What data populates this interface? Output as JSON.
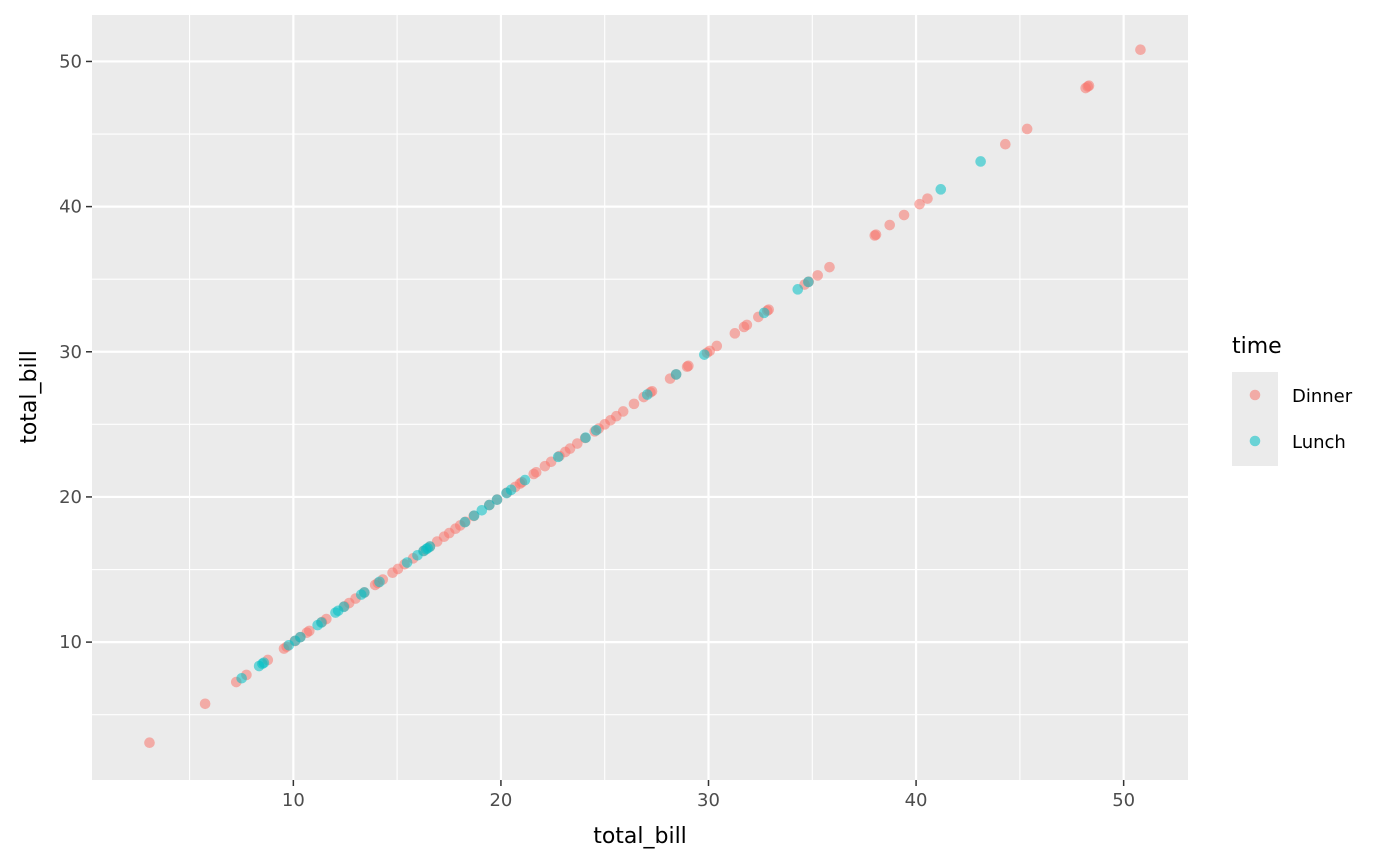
{
  "chart_data": {
    "type": "scatter",
    "xlabel": "total_bill",
    "ylabel": "total_bill",
    "xlim": [
      0.3,
      53.1
    ],
    "ylim": [
      0.5,
      53.2
    ],
    "x_ticks": [
      10,
      20,
      30,
      40,
      50
    ],
    "y_ticks": [
      10,
      20,
      30,
      40,
      50
    ],
    "grid": true,
    "legend": {
      "title": "time",
      "position": "right",
      "entries": [
        "Dinner",
        "Lunch"
      ]
    },
    "colors": {
      "Dinner": "#F8766D",
      "Lunch": "#00BFC4",
      "panel": "#EBEBEB"
    },
    "series": [
      {
        "name": "Dinner",
        "x": [
          3.07,
          5.75,
          7.25,
          7.74,
          8.77,
          9.55,
          9.68,
          10.07,
          10.33,
          10.65,
          10.77,
          11.38,
          11.59,
          12.46,
          12.69,
          13.0,
          13.42,
          13.94,
          14.07,
          14.31,
          14.78,
          15.04,
          15.36,
          15.77,
          16.29,
          16.58,
          16.93,
          17.26,
          17.51,
          17.81,
          18.04,
          18.29,
          18.69,
          19.44,
          19.82,
          20.29,
          20.69,
          20.92,
          21.01,
          21.58,
          21.7,
          22.12,
          22.42,
          22.82,
          23.1,
          23.33,
          23.68,
          24.06,
          24.52,
          24.71,
          25.0,
          25.28,
          25.56,
          25.89,
          26.41,
          26.88,
          27.2,
          27.28,
          28.15,
          28.44,
          28.97,
          29.03,
          29.93,
          30.06,
          30.4,
          31.27,
          31.71,
          31.85,
          32.4,
          32.83,
          32.9,
          34.63,
          34.83,
          35.26,
          35.83,
          38.01,
          38.07,
          38.73,
          39.42,
          40.17,
          40.55,
          44.3,
          45.35,
          48.17,
          48.27,
          48.33,
          50.81
        ],
        "y": [
          3.07,
          5.75,
          7.25,
          7.74,
          8.77,
          9.55,
          9.68,
          10.07,
          10.33,
          10.65,
          10.77,
          11.38,
          11.59,
          12.46,
          12.69,
          13.0,
          13.42,
          13.94,
          14.07,
          14.31,
          14.78,
          15.04,
          15.36,
          15.77,
          16.29,
          16.58,
          16.93,
          17.26,
          17.51,
          17.81,
          18.04,
          18.29,
          18.69,
          19.44,
          19.82,
          20.29,
          20.69,
          20.92,
          21.01,
          21.58,
          21.7,
          22.12,
          22.42,
          22.82,
          23.1,
          23.33,
          23.68,
          24.06,
          24.52,
          24.71,
          25.0,
          25.28,
          25.56,
          25.89,
          26.41,
          26.88,
          27.2,
          27.28,
          28.15,
          28.44,
          28.97,
          29.03,
          29.93,
          30.06,
          30.4,
          31.27,
          31.71,
          31.85,
          32.4,
          32.83,
          32.9,
          34.63,
          34.83,
          35.26,
          35.83,
          38.01,
          38.07,
          38.73,
          39.42,
          40.17,
          40.55,
          44.3,
          45.35,
          48.17,
          48.27,
          48.33,
          50.81
        ]
      },
      {
        "name": "Lunch",
        "x": [
          7.51,
          8.35,
          8.51,
          8.58,
          9.78,
          10.09,
          10.34,
          11.17,
          11.35,
          12.03,
          12.16,
          12.43,
          13.27,
          13.42,
          14.15,
          15.48,
          15.98,
          16.27,
          16.4,
          16.47,
          16.58,
          18.26,
          18.71,
          19.08,
          19.44,
          19.81,
          20.27,
          20.49,
          21.16,
          22.76,
          24.08,
          24.59,
          27.05,
          28.44,
          29.8,
          32.68,
          34.3,
          34.81,
          41.19,
          43.11
        ],
        "y": [
          7.51,
          8.35,
          8.51,
          8.58,
          9.78,
          10.09,
          10.34,
          11.17,
          11.35,
          12.03,
          12.16,
          12.43,
          13.27,
          13.42,
          14.15,
          15.48,
          15.98,
          16.27,
          16.4,
          16.47,
          16.58,
          18.26,
          18.71,
          19.08,
          19.44,
          19.81,
          20.27,
          20.49,
          21.16,
          22.76,
          24.08,
          24.59,
          27.05,
          28.44,
          29.8,
          32.68,
          34.3,
          34.81,
          41.19,
          43.11
        ]
      }
    ]
  }
}
